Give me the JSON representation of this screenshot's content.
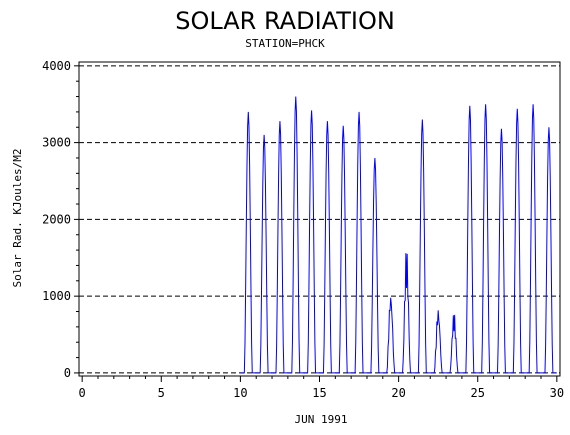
{
  "chart_data": {
    "type": "line",
    "title": "SOLAR RADIATION",
    "subtitle": "STATION=PHCK",
    "xlabel": "JUN 1991",
    "ylabel": "Solar Rad. KJoules/M2",
    "xlim": [
      -0.2,
      30.2
    ],
    "ylim": [
      -40,
      4050
    ],
    "x_ticks": [
      0,
      5,
      10,
      15,
      20,
      25,
      30
    ],
    "y_ticks": [
      0,
      1000,
      2000,
      3000,
      4000
    ],
    "grid": "horizontal-dashed",
    "line_color": "#0000ff",
    "series": [
      {
        "daily_peaks": [
          {
            "day": 10.5,
            "peak": 3400
          },
          {
            "day": 11.5,
            "peak": 3100
          },
          {
            "day": 12.5,
            "peak": 3280
          },
          {
            "day": 13.5,
            "peak": 3600
          },
          {
            "day": 14.5,
            "peak": 3420
          },
          {
            "day": 15.5,
            "peak": 3280
          },
          {
            "day": 16.5,
            "peak": 3220
          },
          {
            "day": 17.5,
            "peak": 3400
          },
          {
            "day": 18.5,
            "peak": 2800
          },
          {
            "day": 19.5,
            "peak": 1050
          },
          {
            "day": 20.5,
            "peak": 1650
          },
          {
            "day": 21.5,
            "peak": 3300
          },
          {
            "day": 22.5,
            "peak": 850
          },
          {
            "day": 23.5,
            "peak": 800
          },
          {
            "day": 24.5,
            "peak": 3480
          },
          {
            "day": 25.5,
            "peak": 3500
          },
          {
            "day": 26.5,
            "peak": 3180
          },
          {
            "day": 27.5,
            "peak": 3440
          },
          {
            "day": 28.5,
            "peak": 3500
          },
          {
            "day": 29.5,
            "peak": 3200
          }
        ]
      }
    ]
  }
}
